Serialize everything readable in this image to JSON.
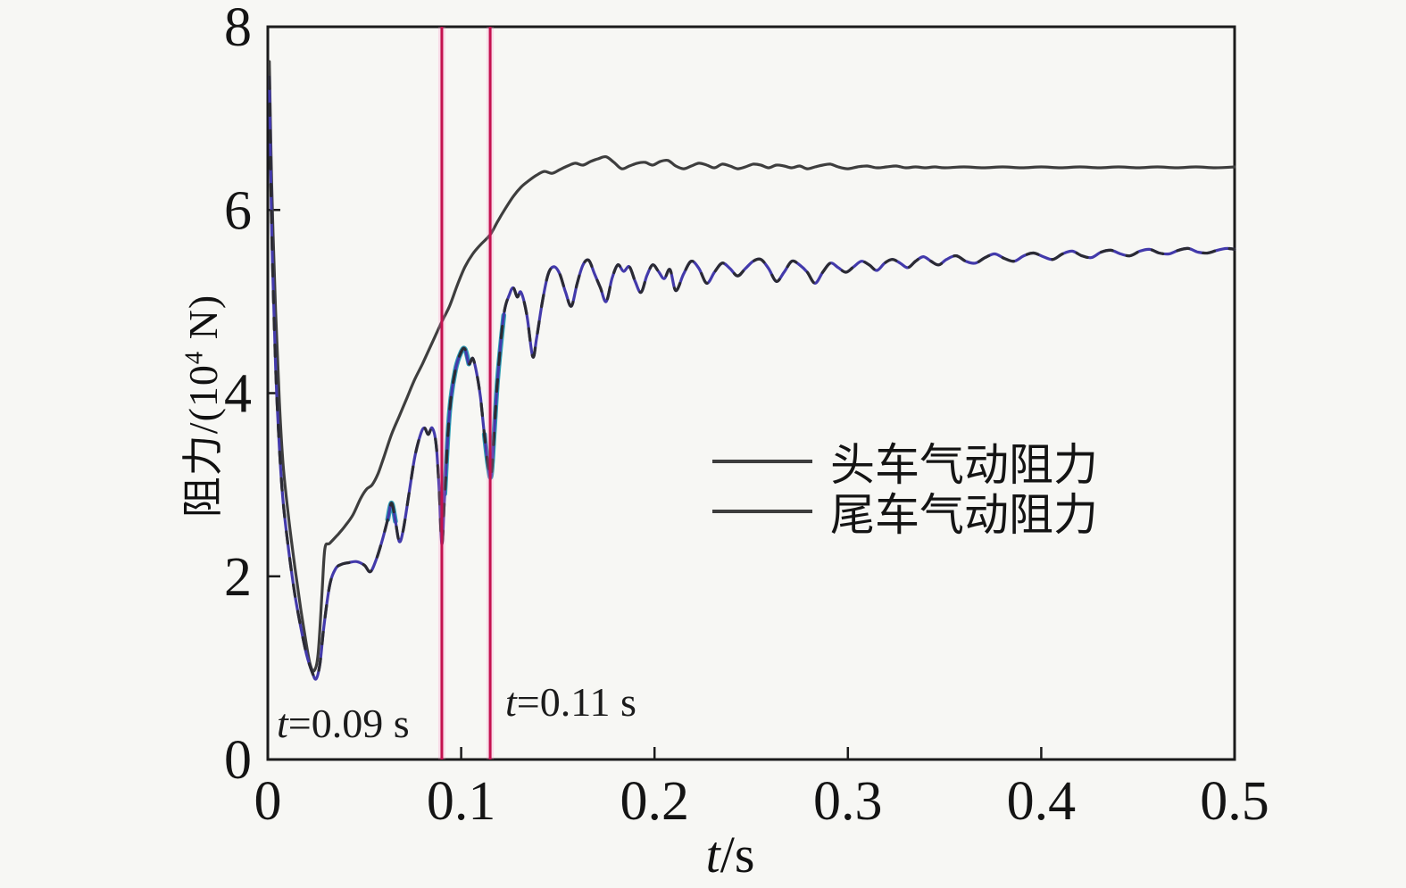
{
  "figure": {
    "background": "#f7f7f4",
    "axis_color": "#1b1b1b"
  },
  "labels": {
    "x_axis": {
      "var": "t",
      "rest": "/s"
    },
    "y_axis": {
      "prefix": "阻力/(10",
      "sup": "4",
      "suffix": " N)"
    }
  },
  "annotations": [
    {
      "var": "t",
      "rest": "=0.09 s"
    },
    {
      "var": "t",
      "rest": "=0.11 s"
    }
  ],
  "legend": {
    "items": [
      {
        "label": "头车气动阻力",
        "color": "#3d3d3d"
      },
      {
        "label": "尾车气动阻力",
        "color": "#3d3d3d"
      }
    ]
  },
  "chart_data": {
    "type": "line",
    "title": "",
    "xlabel": "t/s",
    "ylabel": "阻力/(10⁴ N)",
    "xlim": [
      0,
      0.5
    ],
    "ylim": [
      0,
      8
    ],
    "grid": false,
    "legend_position": "center-right",
    "x_ticks": [
      0,
      0.1,
      0.2,
      0.3,
      0.4,
      0.5
    ],
    "x_tick_labels": [
      "0",
      "0.1",
      "0.2",
      "0.3",
      "0.4",
      "0.5"
    ],
    "y_ticks": [
      0,
      2,
      4,
      6,
      8
    ],
    "y_tick_labels": [
      "0",
      "2",
      "4",
      "6",
      "8"
    ],
    "vlines": [
      {
        "t": 0.09,
        "label": "t=0.09 s",
        "color": "#c4114e",
        "halo": "#ff7fc0"
      },
      {
        "t": 0.115,
        "label": "t=0.11 s",
        "color": "#c4114e",
        "halo": "#ff7fc0"
      }
    ],
    "series": [
      {
        "name": "头车气动阻力",
        "color": "#3e3e3e",
        "points": [
          [
            0.0008,
            7.62
          ],
          [
            0.002,
            6.3
          ],
          [
            0.004,
            4.9
          ],
          [
            0.006,
            3.9
          ],
          [
            0.008,
            3.2
          ],
          [
            0.011,
            2.6
          ],
          [
            0.014,
            2.1
          ],
          [
            0.017,
            1.65
          ],
          [
            0.02,
            1.25
          ],
          [
            0.022,
            1.03
          ],
          [
            0.024,
            0.97
          ],
          [
            0.026,
            1.15
          ],
          [
            0.028,
            1.8
          ],
          [
            0.0295,
            2.3
          ],
          [
            0.032,
            2.36
          ],
          [
            0.036,
            2.45
          ],
          [
            0.04,
            2.55
          ],
          [
            0.044,
            2.67
          ],
          [
            0.048,
            2.85
          ],
          [
            0.051,
            2.95
          ],
          [
            0.054,
            3.0
          ],
          [
            0.057,
            3.12
          ],
          [
            0.06,
            3.3
          ],
          [
            0.064,
            3.55
          ],
          [
            0.068,
            3.75
          ],
          [
            0.072,
            3.95
          ],
          [
            0.076,
            4.15
          ],
          [
            0.08,
            4.32
          ],
          [
            0.085,
            4.55
          ],
          [
            0.09,
            4.78
          ],
          [
            0.094,
            4.95
          ],
          [
            0.098,
            5.18
          ],
          [
            0.102,
            5.38
          ],
          [
            0.106,
            5.52
          ],
          [
            0.11,
            5.62
          ],
          [
            0.115,
            5.73
          ],
          [
            0.119,
            5.88
          ],
          [
            0.123,
            6.02
          ],
          [
            0.127,
            6.15
          ],
          [
            0.131,
            6.25
          ],
          [
            0.135,
            6.32
          ],
          [
            0.139,
            6.38
          ],
          [
            0.143,
            6.42
          ],
          [
            0.147,
            6.4
          ],
          [
            0.151,
            6.44
          ],
          [
            0.155,
            6.48
          ],
          [
            0.159,
            6.51
          ],
          [
            0.163,
            6.49
          ],
          [
            0.167,
            6.53
          ],
          [
            0.171,
            6.56
          ],
          [
            0.175,
            6.58
          ],
          [
            0.179,
            6.52
          ],
          [
            0.183,
            6.45
          ],
          [
            0.187,
            6.48
          ],
          [
            0.191,
            6.51
          ],
          [
            0.195,
            6.52
          ],
          [
            0.199,
            6.49
          ],
          [
            0.203,
            6.53
          ],
          [
            0.207,
            6.54
          ],
          [
            0.211,
            6.48
          ],
          [
            0.215,
            6.45
          ],
          [
            0.219,
            6.48
          ],
          [
            0.223,
            6.51
          ],
          [
            0.227,
            6.49
          ],
          [
            0.231,
            6.46
          ],
          [
            0.235,
            6.5
          ],
          [
            0.239,
            6.48
          ],
          [
            0.243,
            6.45
          ],
          [
            0.247,
            6.47
          ],
          [
            0.251,
            6.5
          ],
          [
            0.255,
            6.49
          ],
          [
            0.259,
            6.46
          ],
          [
            0.263,
            6.49
          ],
          [
            0.267,
            6.48
          ],
          [
            0.271,
            6.46
          ],
          [
            0.275,
            6.48
          ],
          [
            0.279,
            6.45
          ],
          [
            0.283,
            6.47
          ],
          [
            0.287,
            6.49
          ],
          [
            0.291,
            6.5
          ],
          [
            0.295,
            6.47
          ],
          [
            0.3,
            6.45
          ],
          [
            0.305,
            6.47
          ],
          [
            0.31,
            6.48
          ],
          [
            0.315,
            6.46
          ],
          [
            0.32,
            6.47
          ],
          [
            0.325,
            6.48
          ],
          [
            0.33,
            6.46
          ],
          [
            0.335,
            6.47
          ],
          [
            0.34,
            6.46
          ],
          [
            0.345,
            6.47
          ],
          [
            0.35,
            6.46
          ],
          [
            0.36,
            6.47
          ],
          [
            0.37,
            6.46
          ],
          [
            0.38,
            6.47
          ],
          [
            0.39,
            6.46
          ],
          [
            0.4,
            6.47
          ],
          [
            0.41,
            6.46
          ],
          [
            0.42,
            6.47
          ],
          [
            0.43,
            6.46
          ],
          [
            0.44,
            6.47
          ],
          [
            0.45,
            6.46
          ],
          [
            0.46,
            6.47
          ],
          [
            0.47,
            6.46
          ],
          [
            0.48,
            6.47
          ],
          [
            0.49,
            6.46
          ],
          [
            0.5,
            6.47
          ]
        ]
      },
      {
        "name": "尾车气动阻力",
        "color": "#433aab",
        "overlay_color": "#2b2b33",
        "accent_color": "#2e9fb4",
        "accent_ranges": [
          [
            0.06,
            0.066
          ],
          [
            0.0915,
            0.104
          ],
          [
            0.112,
            0.122
          ]
        ],
        "points": [
          [
            0.0008,
            7.45
          ],
          [
            0.002,
            5.8
          ],
          [
            0.004,
            4.3
          ],
          [
            0.006,
            3.4
          ],
          [
            0.008,
            2.8
          ],
          [
            0.011,
            2.25
          ],
          [
            0.014,
            1.8
          ],
          [
            0.017,
            1.45
          ],
          [
            0.02,
            1.15
          ],
          [
            0.023,
            0.95
          ],
          [
            0.025,
            0.88
          ],
          [
            0.027,
            1.05
          ],
          [
            0.029,
            1.45
          ],
          [
            0.032,
            1.9
          ],
          [
            0.035,
            2.08
          ],
          [
            0.038,
            2.13
          ],
          [
            0.042,
            2.15
          ],
          [
            0.046,
            2.16
          ],
          [
            0.05,
            2.12
          ],
          [
            0.053,
            2.05
          ],
          [
            0.056,
            2.18
          ],
          [
            0.059,
            2.38
          ],
          [
            0.062,
            2.62
          ],
          [
            0.064,
            2.8
          ],
          [
            0.066,
            2.6
          ],
          [
            0.068,
            2.38
          ],
          [
            0.07,
            2.5
          ],
          [
            0.073,
            2.9
          ],
          [
            0.076,
            3.3
          ],
          [
            0.079,
            3.55
          ],
          [
            0.081,
            3.62
          ],
          [
            0.083,
            3.55
          ],
          [
            0.085,
            3.62
          ],
          [
            0.087,
            3.45
          ],
          [
            0.0885,
            3.0
          ],
          [
            0.09,
            2.35
          ],
          [
            0.0915,
            2.9
          ],
          [
            0.094,
            3.8
          ],
          [
            0.097,
            4.25
          ],
          [
            0.1,
            4.45
          ],
          [
            0.102,
            4.48
          ],
          [
            0.104,
            4.32
          ],
          [
            0.106,
            4.38
          ],
          [
            0.108,
            4.22
          ],
          [
            0.11,
            3.95
          ],
          [
            0.112,
            3.55
          ],
          [
            0.114,
            3.2
          ],
          [
            0.1155,
            3.1
          ],
          [
            0.117,
            3.55
          ],
          [
            0.119,
            4.2
          ],
          [
            0.122,
            4.85
          ],
          [
            0.125,
            5.08
          ],
          [
            0.127,
            5.15
          ],
          [
            0.129,
            5.05
          ],
          [
            0.131,
            5.1
          ],
          [
            0.134,
            4.85
          ],
          [
            0.137,
            4.4
          ],
          [
            0.139,
            4.6
          ],
          [
            0.142,
            5.0
          ],
          [
            0.145,
            5.3
          ],
          [
            0.148,
            5.38
          ],
          [
            0.151,
            5.3
          ],
          [
            0.154,
            5.1
          ],
          [
            0.157,
            4.95
          ],
          [
            0.16,
            5.2
          ],
          [
            0.163,
            5.4
          ],
          [
            0.166,
            5.45
          ],
          [
            0.169,
            5.3
          ],
          [
            0.172,
            5.15
          ],
          [
            0.175,
            5.0
          ],
          [
            0.178,
            5.25
          ],
          [
            0.181,
            5.4
          ],
          [
            0.184,
            5.33
          ],
          [
            0.187,
            5.38
          ],
          [
            0.19,
            5.22
          ],
          [
            0.193,
            5.1
          ],
          [
            0.196,
            5.28
          ],
          [
            0.199,
            5.4
          ],
          [
            0.202,
            5.33
          ],
          [
            0.205,
            5.25
          ],
          [
            0.208,
            5.35
          ],
          [
            0.211,
            5.12
          ],
          [
            0.215,
            5.3
          ],
          [
            0.219,
            5.44
          ],
          [
            0.223,
            5.36
          ],
          [
            0.227,
            5.2
          ],
          [
            0.231,
            5.32
          ],
          [
            0.235,
            5.42
          ],
          [
            0.239,
            5.36
          ],
          [
            0.243,
            5.28
          ],
          [
            0.247,
            5.36
          ],
          [
            0.251,
            5.44
          ],
          [
            0.255,
            5.46
          ],
          [
            0.259,
            5.36
          ],
          [
            0.263,
            5.22
          ],
          [
            0.267,
            5.32
          ],
          [
            0.271,
            5.44
          ],
          [
            0.275,
            5.4
          ],
          [
            0.279,
            5.32
          ],
          [
            0.283,
            5.2
          ],
          [
            0.287,
            5.32
          ],
          [
            0.291,
            5.42
          ],
          [
            0.295,
            5.37
          ],
          [
            0.299,
            5.32
          ],
          [
            0.303,
            5.38
          ],
          [
            0.307,
            5.44
          ],
          [
            0.311,
            5.4
          ],
          [
            0.315,
            5.34
          ],
          [
            0.319,
            5.42
          ],
          [
            0.323,
            5.46
          ],
          [
            0.327,
            5.42
          ],
          [
            0.331,
            5.37
          ],
          [
            0.335,
            5.44
          ],
          [
            0.339,
            5.49
          ],
          [
            0.343,
            5.44
          ],
          [
            0.347,
            5.4
          ],
          [
            0.351,
            5.46
          ],
          [
            0.356,
            5.5
          ],
          [
            0.361,
            5.44
          ],
          [
            0.366,
            5.42
          ],
          [
            0.371,
            5.48
          ],
          [
            0.376,
            5.52
          ],
          [
            0.381,
            5.47
          ],
          [
            0.386,
            5.44
          ],
          [
            0.391,
            5.5
          ],
          [
            0.396,
            5.53
          ],
          [
            0.401,
            5.49
          ],
          [
            0.406,
            5.46
          ],
          [
            0.411,
            5.52
          ],
          [
            0.416,
            5.55
          ],
          [
            0.421,
            5.5
          ],
          [
            0.426,
            5.48
          ],
          [
            0.431,
            5.54
          ],
          [
            0.436,
            5.56
          ],
          [
            0.441,
            5.52
          ],
          [
            0.446,
            5.5
          ],
          [
            0.451,
            5.55
          ],
          [
            0.456,
            5.57
          ],
          [
            0.461,
            5.53
          ],
          [
            0.466,
            5.52
          ],
          [
            0.471,
            5.56
          ],
          [
            0.476,
            5.58
          ],
          [
            0.481,
            5.54
          ],
          [
            0.486,
            5.53
          ],
          [
            0.491,
            5.56
          ],
          [
            0.496,
            5.58
          ],
          [
            0.5,
            5.57
          ]
        ]
      }
    ]
  }
}
